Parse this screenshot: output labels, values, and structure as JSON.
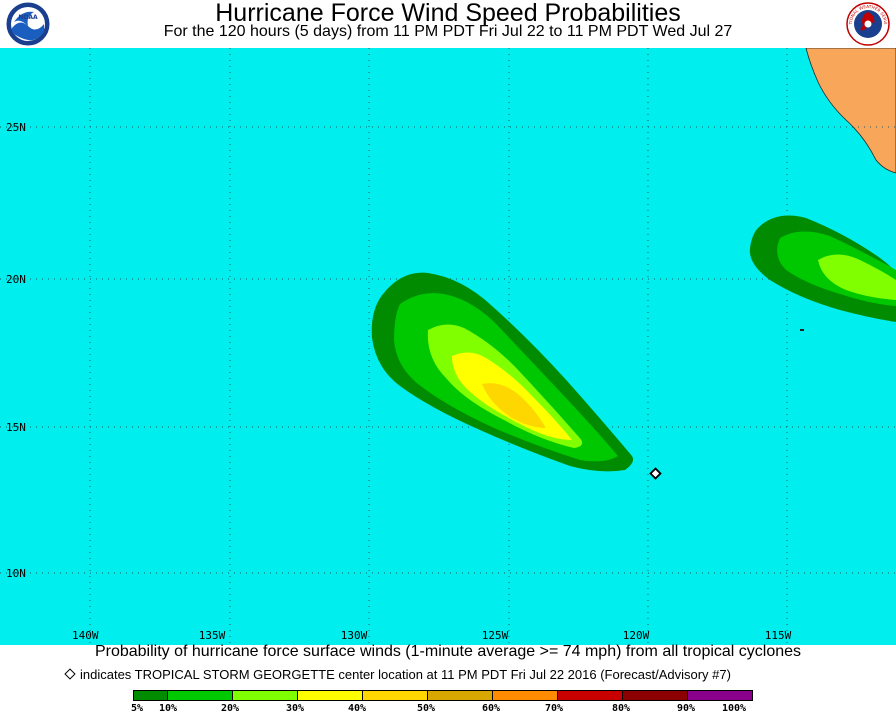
{
  "header": {
    "title": "Hurricane Force Wind Speed Probabilities",
    "subtitle": "For the 120 hours (5 days) from 11 PM PDT Fri Jul 22 to 11 PM PDT Wed Jul 27",
    "left_logo_text": "NOAA",
    "right_logo_text": "NATIONAL WEATHER SERVICE"
  },
  "map": {
    "ocean_color": "#00eeee",
    "land_color": "#f7a65a",
    "lat_labels": [
      "25N",
      "20N",
      "15N",
      "10N"
    ],
    "lon_labels": [
      "140W",
      "135W",
      "130W",
      "125W",
      "120W",
      "115W"
    ]
  },
  "footer": {
    "description": "Probability of hurricane force surface winds (1-minute average >= 74 mph) from all tropical cyclones",
    "storm_note": "indicates TROPICAL STORM GEORGETTE center location at 11 PM PDT Fri Jul 22 2016 (Forecast/Advisory #7)"
  },
  "legend": {
    "colors": [
      "#008b00",
      "#00c800",
      "#7fff00",
      "#ffff00",
      "#ffd700",
      "#d9a800",
      "#ff8c00",
      "#c80000",
      "#8b0000",
      "#8b008b"
    ],
    "labels": [
      "5%",
      "10%",
      "20%",
      "30%",
      "40%",
      "50%",
      "60%",
      "70%",
      "80%",
      "90%",
      "100%"
    ]
  }
}
